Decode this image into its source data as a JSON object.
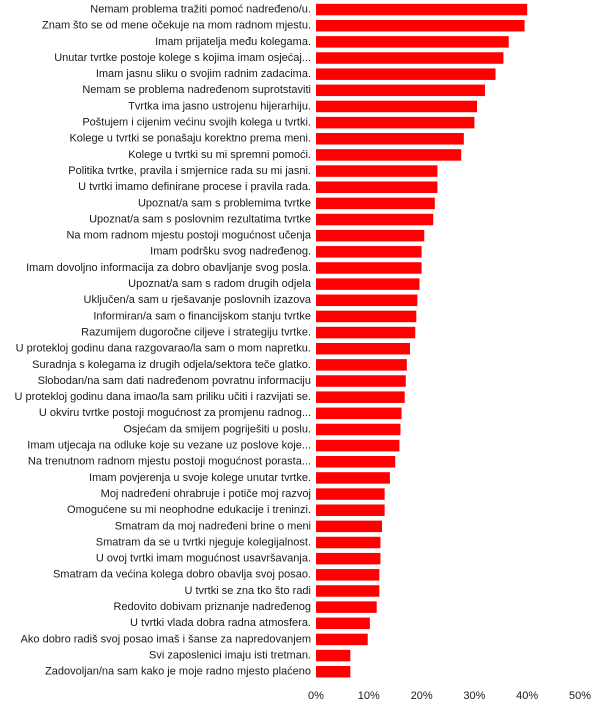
{
  "chart_data": {
    "type": "bar",
    "orientation": "horizontal",
    "title": "",
    "xlabel": "",
    "ylabel": "",
    "xlim": [
      0,
      50
    ],
    "x_ticks": [
      "0%",
      "10%",
      "20%",
      "30%",
      "40%",
      "50%"
    ],
    "x_tick_values": [
      0,
      10,
      20,
      30,
      40,
      50
    ],
    "grid": false,
    "legend": "none",
    "bar_color": "#ff0000",
    "categories": [
      "Nemam problema tražiti pomoć nadređeno/u.",
      "Znam što se od mene očekuje na mom radnom mjestu.",
      "Imam prijatelja među kolegama.",
      "Unutar tvrtke postoje kolege s kojima imam osjećaj...",
      "Imam jasnu sliku o svojim radnim zadacima.",
      "Nemam se problema nadređenom suprotstaviti",
      "Tvrtka ima jasno ustrojenu hijerarhiju.",
      "Poštujem i cijenim većinu svojih kolega u tvrtki.",
      "Kolege u tvrtki se ponašaju korektno prema meni.",
      "Kolege u tvrtki su mi spremni pomoći.",
      "Politika tvrtke, pravila i smjernice rada su mi jasni.",
      "U tvrtki imamo definirane procese i pravila rada.",
      "Upoznat/a sam s problemima tvrtke",
      "Upoznat/a sam s poslovnim rezultatima tvrtke",
      "Na mom radnom mjestu postoji mogućnost učenja",
      "Imam podršku svog nadređenog.",
      "Imam dovoljno informacija za dobro obavljanje svog posla.",
      "Upoznat/a sam s radom drugih odjela",
      "Uključen/a sam u rješavanje poslovnih izazova",
      "Informiran/a sam o financijskom stanju tvrtke",
      "Razumijem dugoročne ciljeve i strategiju tvrtke.",
      "U protekloj godinu dana razgovarao/la sam o mom napretku.",
      "Suradnja s kolegama iz drugih odjela/sektora teče glatko.",
      "Slobodan/na sam dati nadređenom povratnu informaciju",
      "U protekloj godinu dana imao/la sam priliku učiti i razvijati se.",
      "U okviru tvrtke postoji mogućnost za promjenu radnog...",
      "Osjećam da smijem pogriješiti u poslu.",
      "Imam utjecaja na odluke koje su vezane uz poslove koje...",
      "Na trenutnom radnom mjestu postoji mogućnost porasta...",
      "Imam povjerenja u svoje kolege unutar tvrtke.",
      "Moj nadređeni ohrabruje i potiče moj razvoj",
      "Omogućene su mi neophodne edukacije i treninzi.",
      "Smatram da moj nadređeni brine o meni",
      "Smatram da se u tvrtki njeguje kolegijalnost.",
      "U ovoj tvrtki imam mogućnost usavršavanja.",
      "Smatram da većina kolega dobro obavlja svoj posao.",
      "U tvrtki se zna tko što radi",
      "Redovito dobivam priznanje nadređenog",
      "U tvrtki vlada dobra radna atmosfera.",
      "Ako dobro radiš svoj posao imaš i šanse za napredovanjem",
      "Svi zaposlenici imaju isti tretman.",
      "Zadovoljan/na sam kako je moje radno mjesto plaćeno"
    ],
    "values": [
      40,
      39.5,
      36.5,
      35.5,
      34,
      32,
      30.5,
      30,
      28,
      27.5,
      23,
      23,
      22.5,
      22.2,
      20.5,
      20,
      20,
      19.6,
      19.2,
      19,
      18.8,
      17.8,
      17.2,
      17,
      16.8,
      16.2,
      16,
      15.8,
      15,
      14,
      13,
      13,
      12.5,
      12.2,
      12.2,
      12,
      12,
      11.5,
      10.2,
      9.8,
      6.5,
      6.5
    ]
  }
}
